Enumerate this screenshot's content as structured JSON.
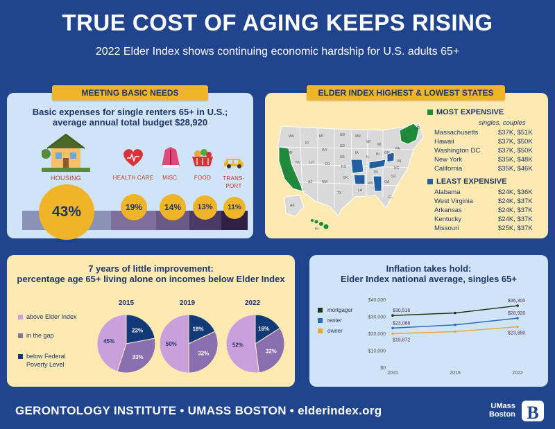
{
  "header": {
    "title": "TRUE COST OF AGING KEEPS RISING",
    "subtitle": "2022 Elder Index shows continuing economic hardship for U.S. adults 65+"
  },
  "basic_needs": {
    "tag": "MEETING BASIC NEEDS",
    "title_line1": "Basic expenses for single renters 65+ in U.S.;",
    "title_line2": "average annual total budget $28,920",
    "categories": [
      {
        "label": "HOUSING",
        "pct": "43%",
        "value": 43,
        "icon": "house-icon",
        "color": "#8a93b6"
      },
      {
        "label": "HEALTH CARE",
        "pct": "19%",
        "value": 19,
        "icon": "heart-stethoscope-icon",
        "color": "#7f6e9a"
      },
      {
        "label": "MISC.",
        "pct": "14%",
        "value": 14,
        "icon": "winter-coat-icon",
        "color": "#6b5985"
      },
      {
        "label": "FOOD",
        "pct": "13%",
        "value": 13,
        "icon": "grocery-basket-icon",
        "color": "#4b3a66"
      },
      {
        "label": "TRANS-PORT",
        "label_line1": "TRANS-",
        "label_line2": "PORT",
        "pct": "11%",
        "value": 11,
        "icon": "car-icon",
        "color": "#2f2145"
      }
    ]
  },
  "states": {
    "tag": "ELDER INDEX HIGHEST & LOWEST STATES",
    "most_title": "MOST EXPENSIVE",
    "legend_note": "singles, couples",
    "most": [
      {
        "state": "Massachusetts",
        "value": "$37K, $51K"
      },
      {
        "state": "Hawaii",
        "value": "$37K, $50K"
      },
      {
        "state": "Washington DC",
        "value": "$37K, $50K"
      },
      {
        "state": "New York",
        "value": "$35K, $48K"
      },
      {
        "state": "California",
        "value": "$35K, $46K"
      }
    ],
    "least_title": "LEAST EXPENSIVE",
    "least": [
      {
        "state": "Alabama",
        "value": "$24K, $36K"
      },
      {
        "state": "West Virginia",
        "value": "$24K, $37K"
      },
      {
        "state": "Arkansas",
        "value": "$24K, $37K"
      },
      {
        "state": "Kentucky",
        "value": "$24K, $37K"
      },
      {
        "state": "Missouri",
        "value": "$25K, $37K"
      }
    ],
    "colors": {
      "most": "#1e8a3a",
      "least": "#1f5fa8",
      "other": "#d9d9d9"
    },
    "map_labels": [
      "WA",
      "OR",
      "CA",
      "NV",
      "ID",
      "MT",
      "WY",
      "UT",
      "CO",
      "AZ",
      "NM",
      "ND",
      "SD",
      "NE",
      "KS",
      "OK",
      "TX",
      "MN",
      "IA",
      "MO",
      "AR",
      "LA",
      "WI",
      "IL",
      "MS",
      "MI",
      "IN",
      "KY",
      "TN",
      "AL",
      "GA",
      "OH",
      "WV",
      "FL",
      "SC",
      "NC",
      "VA",
      "PA",
      "NY",
      "ME",
      "AK",
      "HI"
    ]
  },
  "pies": {
    "title_line1": "7 years of little improvement:",
    "title_line2": "percentage age 65+ living alone on incomes below Elder Index",
    "legend": [
      {
        "label": "above Elder Index",
        "color": "#c9a0dc"
      },
      {
        "label": "in the gap",
        "color": "#8a6fb0"
      },
      {
        "label": "below Federal Poverty Level",
        "line1": "below Federal",
        "line2": "Poverty Level",
        "color": "#123a78"
      }
    ],
    "chart_data": {
      "type": "pie",
      "years": [
        {
          "year": "2015",
          "above": 45,
          "gap": 33,
          "below": 22,
          "labels": [
            "45%",
            "33%",
            "22%"
          ]
        },
        {
          "year": "2019",
          "above": 50,
          "gap": 32,
          "below": 18,
          "labels": [
            "50%",
            "32%",
            "18%"
          ]
        },
        {
          "year": "2022",
          "above": 52,
          "gap": 32,
          "below": 16,
          "labels": [
            "52%",
            "32%",
            "16%"
          ]
        }
      ]
    }
  },
  "inflation": {
    "title_line1": "Inflation takes hold:",
    "title_line2": "Elder Index national average, singles 65+",
    "chart_data": {
      "type": "line",
      "x": [
        "2015",
        "2019",
        "2022"
      ],
      "yticks": [
        "$40,000",
        "$30,000",
        "$20,000",
        "$10,000",
        "$0"
      ],
      "ylim": [
        0,
        40000
      ],
      "series": [
        {
          "name": "mortgagor",
          "color": "#1a3a1a",
          "values": [
            30516,
            32000,
            36300
          ],
          "start_label": "$30,516",
          "end_label": "$36,300"
        },
        {
          "name": "renter",
          "color": "#2a6db5",
          "values": [
            23088,
            25000,
            28920
          ],
          "start_label": "$23,088",
          "end_label": "$28,920"
        },
        {
          "name": "owner",
          "color": "#e8a93a",
          "values": [
            19872,
            21000,
            23880
          ],
          "start_label": "$19,872",
          "end_label": "$23,880"
        }
      ]
    }
  },
  "footer": {
    "text": "GERONTOLOGY INSTITUTE  •  UMASS BOSTON  •  elderindex.org",
    "logo_line1": "UMass",
    "logo_line2": "Boston"
  }
}
